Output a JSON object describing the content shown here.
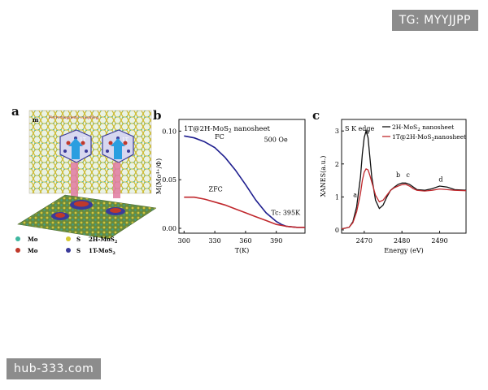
{
  "watermarks": {
    "top": "TG: MYYJJPP",
    "bottom": "hub-333.com"
  },
  "panel_a": {
    "letter": "a",
    "top_tag": "m",
    "coupling_label": "Ferromagnetic coupling",
    "domain_labels": [
      "1T",
      "1T"
    ],
    "legend": [
      {
        "symbol_color": "#3fb7a0",
        "label": "Mo",
        "group": "2H-MoS2"
      },
      {
        "symbol_color": "#d6c832",
        "label": "S",
        "group": "2H-MoS2"
      },
      {
        "symbol_color": "#c0392b",
        "label": "Mo",
        "group": "1T-MoS2"
      },
      {
        "symbol_color": "#3b3b9a",
        "label": "S",
        "group": "1T-MoS2"
      }
    ],
    "group_2h": "2H-MoS",
    "group_1t": "1T-MoS",
    "sub": "2"
  },
  "chart_data": [
    {
      "type": "line",
      "panel": "b",
      "title": "1T@2H-MoS2 nanosheet",
      "title_main": "1T@2H-MoS",
      "title_sub": "2",
      "title_tail": " nanosheet",
      "annotation_field": "500 Oe",
      "annotation_tc": "Tc: 395K",
      "xlabel": "T(K)",
      "ylabel": "M(Mo⁴⁺/Φ)",
      "xlim": [
        295,
        418
      ],
      "ylim": [
        -0.005,
        0.112
      ],
      "xticks": [
        300,
        330,
        360,
        390
      ],
      "yticks": [
        0.0,
        0.05,
        0.1
      ],
      "ytick_labels": [
        "0.00",
        "0.05",
        "0.10"
      ],
      "series": [
        {
          "name": "FC",
          "color": "#1f1f8f",
          "x": [
            300,
            310,
            320,
            330,
            340,
            350,
            360,
            370,
            380,
            390,
            395,
            400,
            410,
            418
          ],
          "y": [
            0.095,
            0.093,
            0.089,
            0.083,
            0.073,
            0.06,
            0.045,
            0.029,
            0.016,
            0.007,
            0.004,
            0.002,
            0.001,
            0.001
          ]
        },
        {
          "name": "ZFC",
          "color": "#c0282d",
          "x": [
            300,
            310,
            320,
            330,
            340,
            350,
            360,
            370,
            380,
            390,
            395,
            400,
            410,
            418
          ],
          "y": [
            0.032,
            0.032,
            0.03,
            0.027,
            0.024,
            0.02,
            0.016,
            0.012,
            0.008,
            0.004,
            0.003,
            0.002,
            0.001,
            0.001
          ]
        }
      ]
    },
    {
      "type": "line",
      "panel": "c",
      "title": "S K edge",
      "xlabel": "Energy (eV)",
      "ylabel": "XANES(a.u.)",
      "xlim": [
        2464,
        2497
      ],
      "ylim": [
        -0.1,
        3.35
      ],
      "xticks": [
        2470,
        2480,
        2490
      ],
      "yticks": [
        0,
        1,
        2,
        3
      ],
      "peak_labels": [
        {
          "text": "a",
          "x": 2470.8,
          "y": 2.92
        },
        {
          "text": "a",
          "x": 2467.6,
          "y": 1.0
        },
        {
          "text": "b",
          "x": 2479.0,
          "y": 1.6
        },
        {
          "text": "c",
          "x": 2481.6,
          "y": 1.6
        },
        {
          "text": "d",
          "x": 2490.3,
          "y": 1.47
        }
      ],
      "legend": [
        {
          "name": "2H-MoS2 nanosheet",
          "main": "2H-MoS",
          "sub": "2",
          "tail": " nanosheet",
          "color": "#111111"
        },
        {
          "name": "1T@2H-MoS2 nanosheet",
          "main": "1T@2H-MoS",
          "sub": "2",
          "tail": "nanosheet",
          "color": "#c0282d"
        }
      ],
      "series": [
        {
          "name": "2H-MoS2 nanosheet",
          "color": "#111111",
          "x": [
            2464,
            2466,
            2467,
            2468,
            2469,
            2469.5,
            2470,
            2470.5,
            2471,
            2471.5,
            2472,
            2473,
            2474,
            2475,
            2476,
            2477,
            2478,
            2479,
            2480,
            2481,
            2482,
            2483,
            2484,
            2486,
            2488,
            2490,
            2492,
            2494,
            2497
          ],
          "y": [
            0.03,
            0.08,
            0.25,
            0.7,
            1.6,
            2.3,
            2.8,
            3.0,
            2.8,
            2.2,
            1.6,
            0.9,
            0.65,
            0.75,
            1.0,
            1.2,
            1.3,
            1.38,
            1.42,
            1.42,
            1.38,
            1.3,
            1.22,
            1.2,
            1.25,
            1.33,
            1.3,
            1.22,
            1.2
          ]
        },
        {
          "name": "1T@2H-MoS2 nanosheet",
          "color": "#c0282d",
          "x": [
            2464,
            2466,
            2467,
            2468,
            2469,
            2469.5,
            2470,
            2470.5,
            2471,
            2471.5,
            2472,
            2473,
            2474,
            2475,
            2476,
            2477,
            2478,
            2479,
            2480,
            2481,
            2482,
            2483,
            2484,
            2486,
            2488,
            2490,
            2492,
            2494,
            2497
          ],
          "y": [
            0.03,
            0.08,
            0.22,
            0.55,
            1.1,
            1.5,
            1.75,
            1.85,
            1.82,
            1.65,
            1.45,
            1.05,
            0.85,
            0.9,
            1.05,
            1.2,
            1.28,
            1.33,
            1.37,
            1.38,
            1.33,
            1.25,
            1.2,
            1.18,
            1.2,
            1.24,
            1.22,
            1.2,
            1.19
          ]
        }
      ]
    }
  ]
}
